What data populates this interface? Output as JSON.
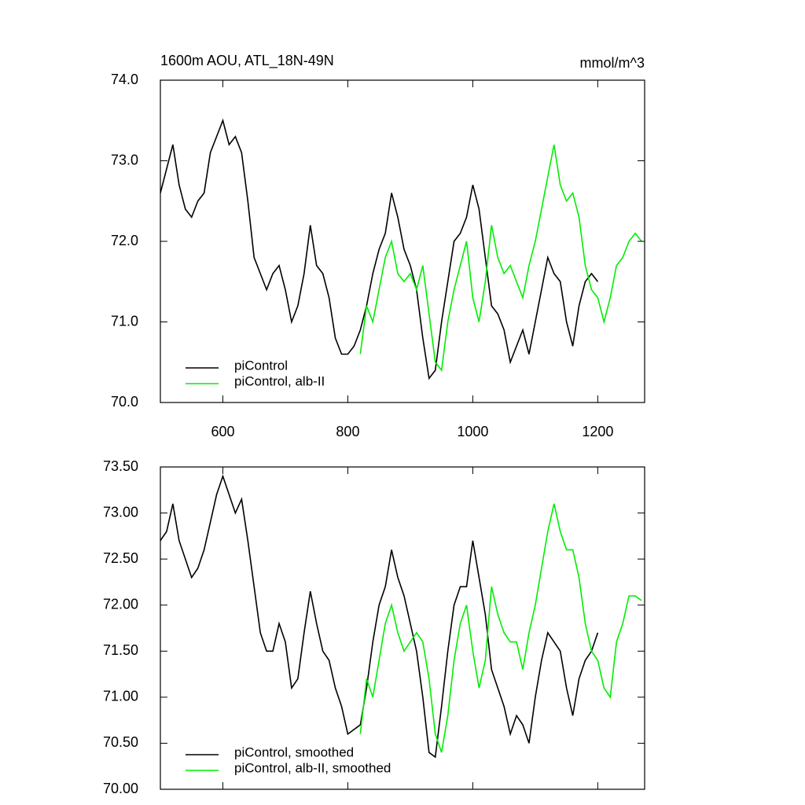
{
  "chart_data": [
    {
      "type": "line",
      "title": "1600m AOU, ATL_18N-49N",
      "units": "mmol/m^3",
      "xlim": [
        500,
        1275
      ],
      "xticks": [
        600,
        800,
        1000,
        1200
      ],
      "ylim": [
        70,
        74
      ],
      "yticks": [
        {
          "value": 70,
          "label": "70.0"
        },
        {
          "value": 71,
          "label": "71.0"
        },
        {
          "value": 72,
          "label": "72.0"
        },
        {
          "value": 73,
          "label": "73.0"
        },
        {
          "value": 74,
          "label": "74.0"
        }
      ],
      "legend": "lower left",
      "x": [
        500,
        510,
        520,
        530,
        540,
        550,
        560,
        570,
        580,
        590,
        600,
        610,
        620,
        630,
        640,
        650,
        660,
        670,
        680,
        690,
        700,
        710,
        720,
        730,
        740,
        750,
        760,
        770,
        780,
        790,
        800,
        810,
        820,
        830,
        840,
        850,
        860,
        870,
        880,
        890,
        900,
        910,
        920,
        930,
        940,
        950,
        960,
        970,
        980,
        990,
        1000,
        1010,
        1020,
        1030,
        1040,
        1050,
        1060,
        1070,
        1080,
        1090,
        1100,
        1110,
        1120,
        1130,
        1140,
        1150,
        1160,
        1170,
        1180,
        1190,
        1200,
        1210,
        1220,
        1230,
        1240,
        1250,
        1260,
        1270
      ],
      "series": [
        {
          "name": "piControl",
          "color": "#000000",
          "values": [
            72.6,
            72.9,
            73.2,
            72.7,
            72.4,
            72.3,
            72.5,
            72.6,
            73.1,
            73.3,
            73.5,
            73.2,
            73.3,
            73.1,
            72.5,
            71.8,
            71.6,
            71.4,
            71.6,
            71.7,
            71.4,
            71.0,
            71.2,
            71.6,
            72.2,
            71.7,
            71.6,
            71.3,
            70.8,
            70.6,
            70.6,
            70.7,
            70.9,
            71.2,
            71.6,
            71.9,
            72.1,
            72.6,
            72.3,
            71.9,
            71.7,
            71.4,
            70.8,
            70.3,
            70.4,
            71.0,
            71.5,
            72.0,
            72.1,
            72.3,
            72.7,
            72.4,
            71.8,
            71.2,
            71.1,
            70.9,
            70.5,
            70.7,
            70.9,
            70.6,
            71.0,
            71.4,
            71.8,
            71.6,
            71.5,
            71.0,
            70.7,
            71.2,
            71.5,
            71.6,
            71.5,
            null,
            null,
            null,
            null,
            null,
            null,
            null
          ]
        },
        {
          "name": "piControl, alb-II",
          "color": "#00ee00",
          "values": [
            null,
            null,
            null,
            null,
            null,
            null,
            null,
            null,
            null,
            null,
            null,
            null,
            null,
            null,
            null,
            null,
            null,
            null,
            null,
            null,
            null,
            null,
            null,
            null,
            null,
            null,
            null,
            null,
            null,
            null,
            null,
            null,
            70.6,
            71.2,
            71.0,
            71.4,
            71.8,
            72.0,
            71.6,
            71.5,
            71.6,
            71.4,
            71.7,
            71.1,
            70.5,
            70.4,
            71.0,
            71.4,
            71.7,
            72.0,
            71.3,
            71.0,
            71.5,
            72.2,
            71.8,
            71.6,
            71.7,
            71.5,
            71.3,
            71.7,
            72.0,
            72.4,
            72.8,
            73.2,
            72.7,
            72.5,
            72.6,
            72.3,
            71.7,
            71.4,
            71.3,
            71.0,
            71.3,
            71.7,
            71.8,
            72.0,
            72.1,
            72.0
          ]
        }
      ]
    },
    {
      "type": "line",
      "xlim": [
        500,
        1275
      ],
      "ylim": [
        70,
        73.5
      ],
      "yticks": [
        {
          "value": 70,
          "label": "70.00"
        },
        {
          "value": 70.5,
          "label": "70.50"
        },
        {
          "value": 71,
          "label": "71.00"
        },
        {
          "value": 71.5,
          "label": "71.50"
        },
        {
          "value": 72,
          "label": "72.00"
        },
        {
          "value": 72.5,
          "label": "72.50"
        },
        {
          "value": 73,
          "label": "73.00"
        },
        {
          "value": 73.5,
          "label": "73.50"
        }
      ],
      "legend": "lower left",
      "x": [
        500,
        510,
        520,
        530,
        540,
        550,
        560,
        570,
        580,
        590,
        600,
        610,
        620,
        630,
        640,
        650,
        660,
        670,
        680,
        690,
        700,
        710,
        720,
        730,
        740,
        750,
        760,
        770,
        780,
        790,
        800,
        810,
        820,
        830,
        840,
        850,
        860,
        870,
        880,
        890,
        900,
        910,
        920,
        930,
        940,
        950,
        960,
        970,
        980,
        990,
        1000,
        1010,
        1020,
        1030,
        1040,
        1050,
        1060,
        1070,
        1080,
        1090,
        1100,
        1110,
        1120,
        1130,
        1140,
        1150,
        1160,
        1170,
        1180,
        1190,
        1200,
        1210,
        1220,
        1230,
        1240,
        1250,
        1260,
        1270
      ],
      "series": [
        {
          "name": "piControl, smoothed",
          "color": "#000000",
          "values": [
            72.7,
            72.8,
            73.1,
            72.7,
            72.5,
            72.3,
            72.4,
            72.6,
            72.9,
            73.2,
            73.4,
            73.2,
            73.0,
            73.15,
            72.7,
            72.2,
            71.7,
            71.5,
            71.5,
            71.8,
            71.6,
            71.1,
            71.2,
            71.7,
            72.15,
            71.8,
            71.5,
            71.4,
            71.1,
            70.9,
            70.6,
            70.65,
            70.7,
            71.1,
            71.6,
            72.0,
            72.2,
            72.6,
            72.3,
            72.1,
            71.8,
            71.5,
            71.0,
            70.4,
            70.35,
            70.9,
            71.5,
            72.0,
            72.2,
            72.2,
            72.7,
            72.3,
            71.9,
            71.3,
            71.1,
            70.9,
            70.6,
            70.8,
            70.7,
            70.5,
            71.0,
            71.4,
            71.7,
            71.6,
            71.5,
            71.1,
            70.8,
            71.2,
            71.4,
            71.5,
            71.7,
            null,
            null,
            null,
            null,
            null,
            null,
            null
          ]
        },
        {
          "name": "piControl, alb-II, smoothed",
          "color": "#00ee00",
          "values": [
            null,
            null,
            null,
            null,
            null,
            null,
            null,
            null,
            null,
            null,
            null,
            null,
            null,
            null,
            null,
            null,
            null,
            null,
            null,
            null,
            null,
            null,
            null,
            null,
            null,
            null,
            null,
            null,
            null,
            null,
            null,
            null,
            70.6,
            71.2,
            71.0,
            71.4,
            71.8,
            72.0,
            71.7,
            71.5,
            71.6,
            71.7,
            71.6,
            71.2,
            70.6,
            70.4,
            70.8,
            71.4,
            71.8,
            72.0,
            71.5,
            71.1,
            71.4,
            72.2,
            71.9,
            71.7,
            71.6,
            71.6,
            71.3,
            71.7,
            72.0,
            72.4,
            72.8,
            73.1,
            72.8,
            72.6,
            72.6,
            72.3,
            71.8,
            71.5,
            71.4,
            71.1,
            71.0,
            71.6,
            71.8,
            72.1,
            72.1,
            72.05
          ]
        }
      ]
    }
  ]
}
